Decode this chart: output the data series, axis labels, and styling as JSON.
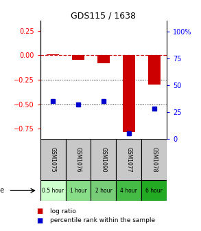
{
  "title": "GDS115 / 1638",
  "samples": [
    "GSM1075",
    "GSM1076",
    "GSM1090",
    "GSM1077",
    "GSM1078"
  ],
  "time_labels": [
    "0.5 hour",
    "1 hour",
    "2 hour",
    "4 hour",
    "6 hour"
  ],
  "time_colors": [
    "#ccffcc",
    "#88dd88",
    "#77cc77",
    "#44bb44",
    "#22aa22"
  ],
  "log_ratio": [
    0.01,
    -0.05,
    -0.08,
    -0.78,
    -0.3
  ],
  "percentile_rank": [
    35,
    32,
    35,
    5,
    28
  ],
  "bar_color": "#cc0000",
  "dot_color": "#0000cc",
  "ylim_left": [
    -0.85,
    0.35
  ],
  "ylim_right": [
    0,
    110
  ],
  "yticks_left": [
    0.25,
    0.0,
    -0.25,
    -0.5,
    -0.75
  ],
  "yticks_right": [
    100,
    75,
    50,
    25,
    0
  ],
  "dotted_lines": [
    -0.25,
    -0.5
  ],
  "bar_width": 0.5,
  "gsm_bg": "#c8c8c8",
  "legend_red_label": "log ratio",
  "legend_blue_label": "percentile rank within the sample"
}
